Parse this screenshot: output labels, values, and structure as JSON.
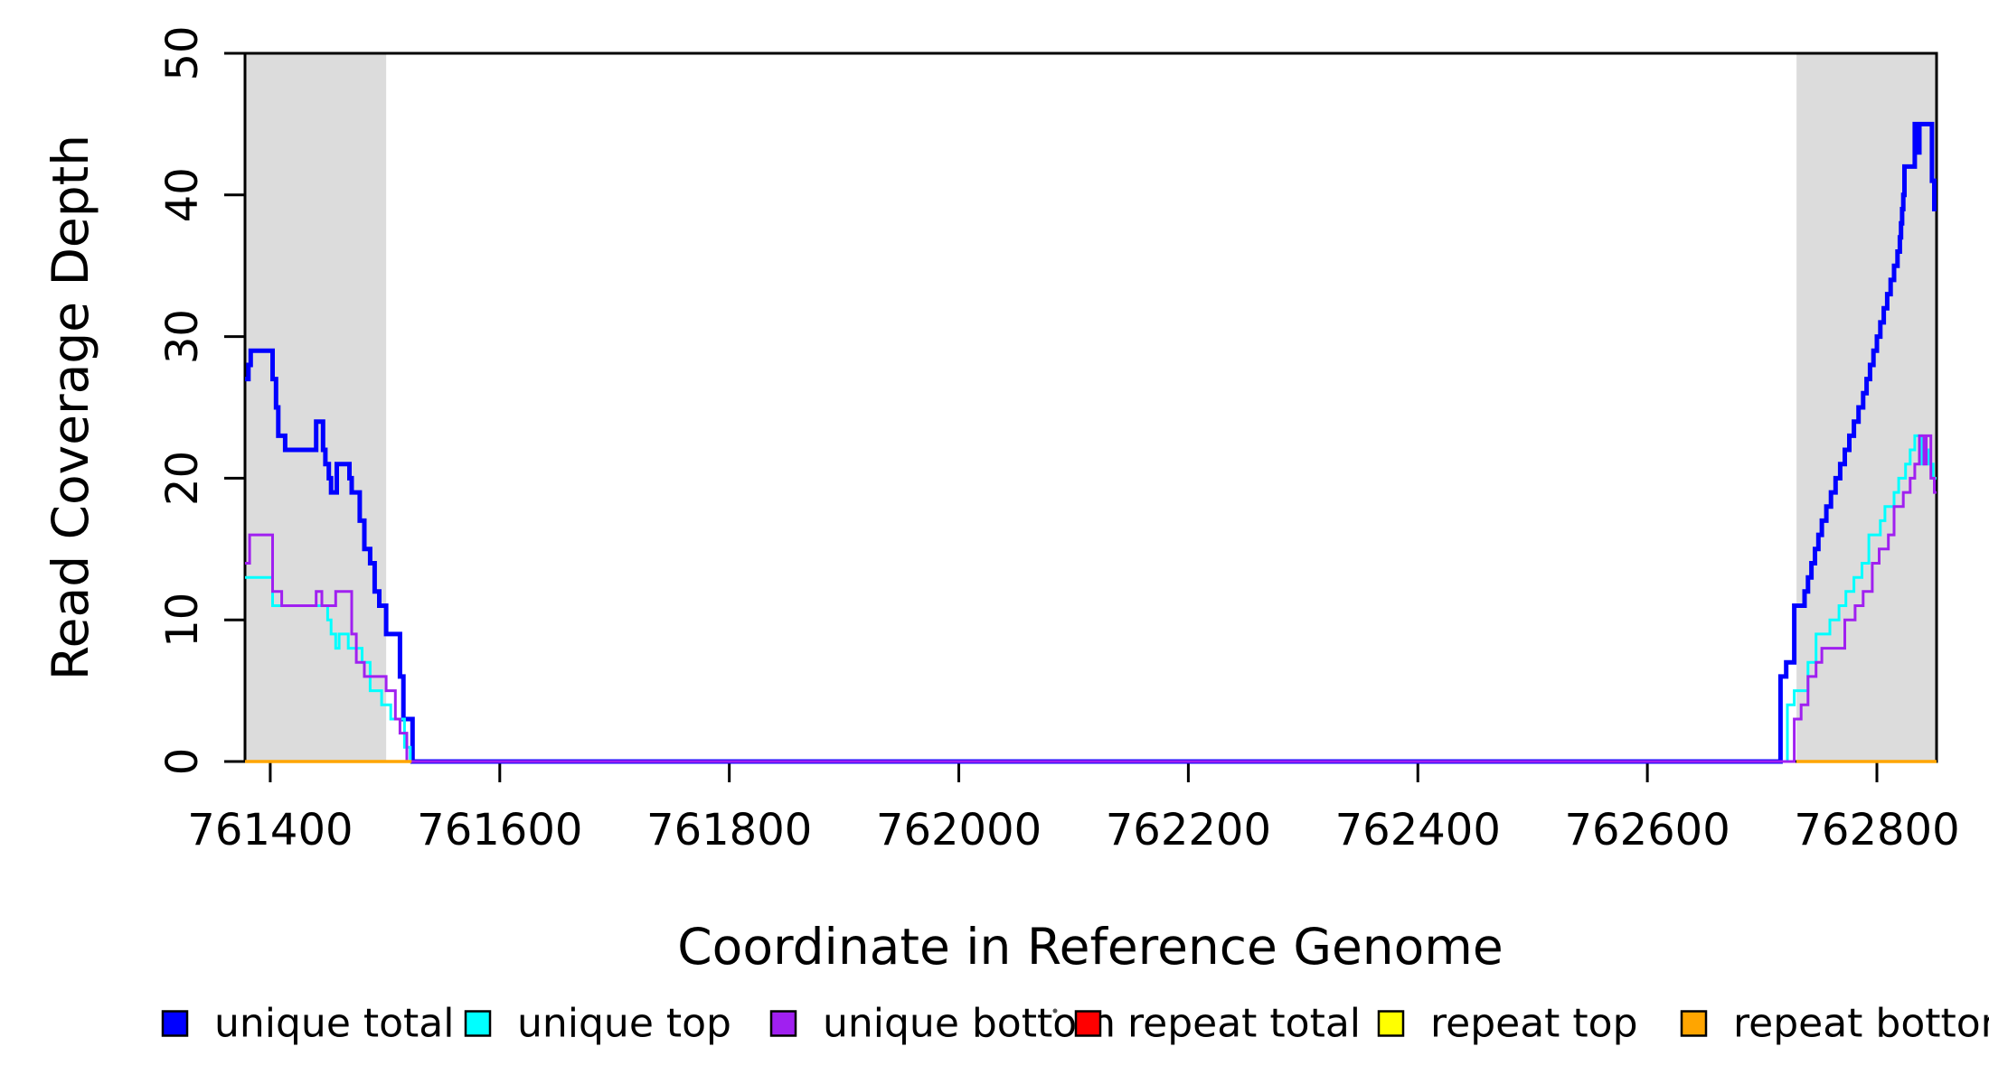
{
  "chart_data": {
    "type": "line",
    "subtype": "step",
    "title": "",
    "xlabel": "Coordinate in Reference Genome",
    "ylabel": "Read Coverage Depth",
    "xlim": [
      761378,
      762852
    ],
    "ylim": [
      0,
      50
    ],
    "x_ticks": [
      761400,
      761600,
      761800,
      762000,
      762200,
      762400,
      762600,
      762800
    ],
    "y_ticks": [
      0,
      10,
      20,
      30,
      40,
      50
    ],
    "grid": false,
    "legend_position": "bottom",
    "shade_color": "#DCDCDC",
    "shaded_regions": [
      {
        "from": 761378,
        "to": 761501
      },
      {
        "from": 762730,
        "to": 762852
      }
    ],
    "series": [
      {
        "name": "unique total",
        "color": "#0000FF",
        "width": 5,
        "segments": [
          {
            "end": 762852,
            "steps": [
              [
                761378,
                27
              ],
              [
                761381,
                28
              ],
              [
                761383,
                29
              ],
              [
                761402,
                27
              ],
              [
                761405,
                25
              ],
              [
                761407,
                23
              ],
              [
                761413,
                22
              ],
              [
                761440,
                24
              ],
              [
                761446,
                22
              ],
              [
                761448,
                21
              ],
              [
                761451,
                20
              ],
              [
                761453,
                19
              ],
              [
                761458,
                21
              ],
              [
                761469,
                20
              ],
              [
                761471,
                19
              ],
              [
                761478,
                17
              ],
              [
                761482,
                15
              ],
              [
                761487,
                14
              ],
              [
                761491,
                12
              ],
              [
                761495,
                11
              ],
              [
                761501,
                9
              ],
              [
                761513,
                6
              ],
              [
                761516,
                3
              ],
              [
                761524,
                0
              ],
              [
                762716,
                6
              ],
              [
                762721,
                7
              ],
              [
                762728,
                11
              ],
              [
                762737,
                12
              ],
              [
                762740,
                13
              ],
              [
                762743,
                14
              ],
              [
                762746,
                15
              ],
              [
                762749,
                16
              ],
              [
                762752,
                17
              ],
              [
                762756,
                18
              ],
              [
                762760,
                19
              ],
              [
                762764,
                20
              ],
              [
                762768,
                21
              ],
              [
                762772,
                22
              ],
              [
                762776,
                23
              ],
              [
                762780,
                24
              ],
              [
                762784,
                25
              ],
              [
                762788,
                26
              ],
              [
                762791,
                27
              ],
              [
                762794,
                28
              ],
              [
                762797,
                29
              ],
              [
                762800,
                30
              ],
              [
                762803,
                31
              ],
              [
                762806,
                32
              ],
              [
                762809,
                33
              ],
              [
                762812,
                34
              ],
              [
                762815,
                35
              ],
              [
                762818,
                36
              ],
              [
                762820,
                37
              ],
              [
                762821,
                38
              ],
              [
                762822,
                39
              ],
              [
                762823,
                40
              ],
              [
                762824,
                42
              ],
              [
                762833,
                45
              ],
              [
                762835,
                43
              ],
              [
                762837,
                45
              ],
              [
                762848,
                41
              ],
              [
                762850,
                39
              ]
            ]
          }
        ]
      },
      {
        "name": "unique top",
        "color": "#00FFFF",
        "width": 3,
        "segments": [
          {
            "end": 762852,
            "steps": [
              [
                761378,
                13
              ],
              [
                761402,
                11
              ],
              [
                761450,
                10
              ],
              [
                761453,
                9
              ],
              [
                761457,
                8
              ],
              [
                761460,
                9
              ],
              [
                761468,
                8
              ],
              [
                761480,
                7
              ],
              [
                761487,
                5
              ],
              [
                761497,
                4
              ],
              [
                761505,
                3
              ],
              [
                761517,
                1
              ],
              [
                761522,
                0
              ],
              [
                762722,
                4
              ],
              [
                762728,
                5
              ],
              [
                762740,
                7
              ],
              [
                762747,
                9
              ],
              [
                762759,
                10
              ],
              [
                762767,
                11
              ],
              [
                762773,
                12
              ],
              [
                762780,
                13
              ],
              [
                762787,
                14
              ],
              [
                762793,
                16
              ],
              [
                762803,
                17
              ],
              [
                762807,
                18
              ],
              [
                762815,
                19
              ],
              [
                762819,
                20
              ],
              [
                762825,
                21
              ],
              [
                762829,
                22
              ],
              [
                762833,
                23
              ],
              [
                762839,
                21
              ],
              [
                762841,
                22
              ],
              [
                762845,
                21
              ],
              [
                762849,
                20
              ]
            ]
          }
        ]
      },
      {
        "name": "unique bottom",
        "color": "#A020F0",
        "width": 3,
        "segments": [
          {
            "end": 762852,
            "steps": [
              [
                761378,
                14
              ],
              [
                761382,
                16
              ],
              [
                761402,
                12
              ],
              [
                761410,
                11
              ],
              [
                761440,
                12
              ],
              [
                761445,
                11
              ],
              [
                761457,
                12
              ],
              [
                761471,
                9
              ],
              [
                761475,
                7
              ],
              [
                761482,
                6
              ],
              [
                761501,
                5
              ],
              [
                761509,
                3
              ],
              [
                761513,
                2
              ],
              [
                761519,
                0
              ],
              [
                762728,
                3
              ],
              [
                762734,
                4
              ],
              [
                762740,
                6
              ],
              [
                762747,
                7
              ],
              [
                762752,
                8
              ],
              [
                762772,
                10
              ],
              [
                762781,
                11
              ],
              [
                762788,
                12
              ],
              [
                762796,
                14
              ],
              [
                762802,
                15
              ],
              [
                762810,
                16
              ],
              [
                762815,
                18
              ],
              [
                762823,
                19
              ],
              [
                762829,
                20
              ],
              [
                762833,
                21
              ],
              [
                762837,
                23
              ],
              [
                762841,
                21
              ],
              [
                762843,
                23
              ],
              [
                762847,
                20
              ],
              [
                762850,
                19
              ]
            ]
          }
        ]
      },
      {
        "name": "repeat total",
        "color": "#FF0000",
        "width": 3,
        "segments": [
          {
            "end": 761523,
            "steps": [
              [
                761378,
                0
              ]
            ]
          },
          {
            "end": 762852,
            "steps": [
              [
                762730,
                0
              ]
            ]
          }
        ]
      },
      {
        "name": "repeat top",
        "color": "#FFFF00",
        "width": 3,
        "segments": [
          {
            "end": 761523,
            "steps": [
              [
                761378,
                0
              ]
            ]
          },
          {
            "end": 762852,
            "steps": [
              [
                762730,
                0
              ]
            ]
          }
        ]
      },
      {
        "name": "repeat bottom",
        "color": "#FFA500",
        "width": 3.5,
        "segments": [
          {
            "end": 761523,
            "steps": [
              [
                761378,
                0
              ]
            ]
          },
          {
            "end": 762852,
            "steps": [
              [
                762730,
                0
              ]
            ]
          }
        ]
      }
    ],
    "legend": [
      {
        "label": "unique total",
        "color": "#0000FF"
      },
      {
        "label": "unique top",
        "color": "#00FFFF"
      },
      {
        "label": "unique bottom",
        "color": "#A020F0"
      },
      {
        "label": "repeat total",
        "color": "#FF0000"
      },
      {
        "label": "repeat top",
        "color": "#FFFF00"
      },
      {
        "label": "repeat bottom",
        "color": "#FFA500"
      }
    ]
  }
}
